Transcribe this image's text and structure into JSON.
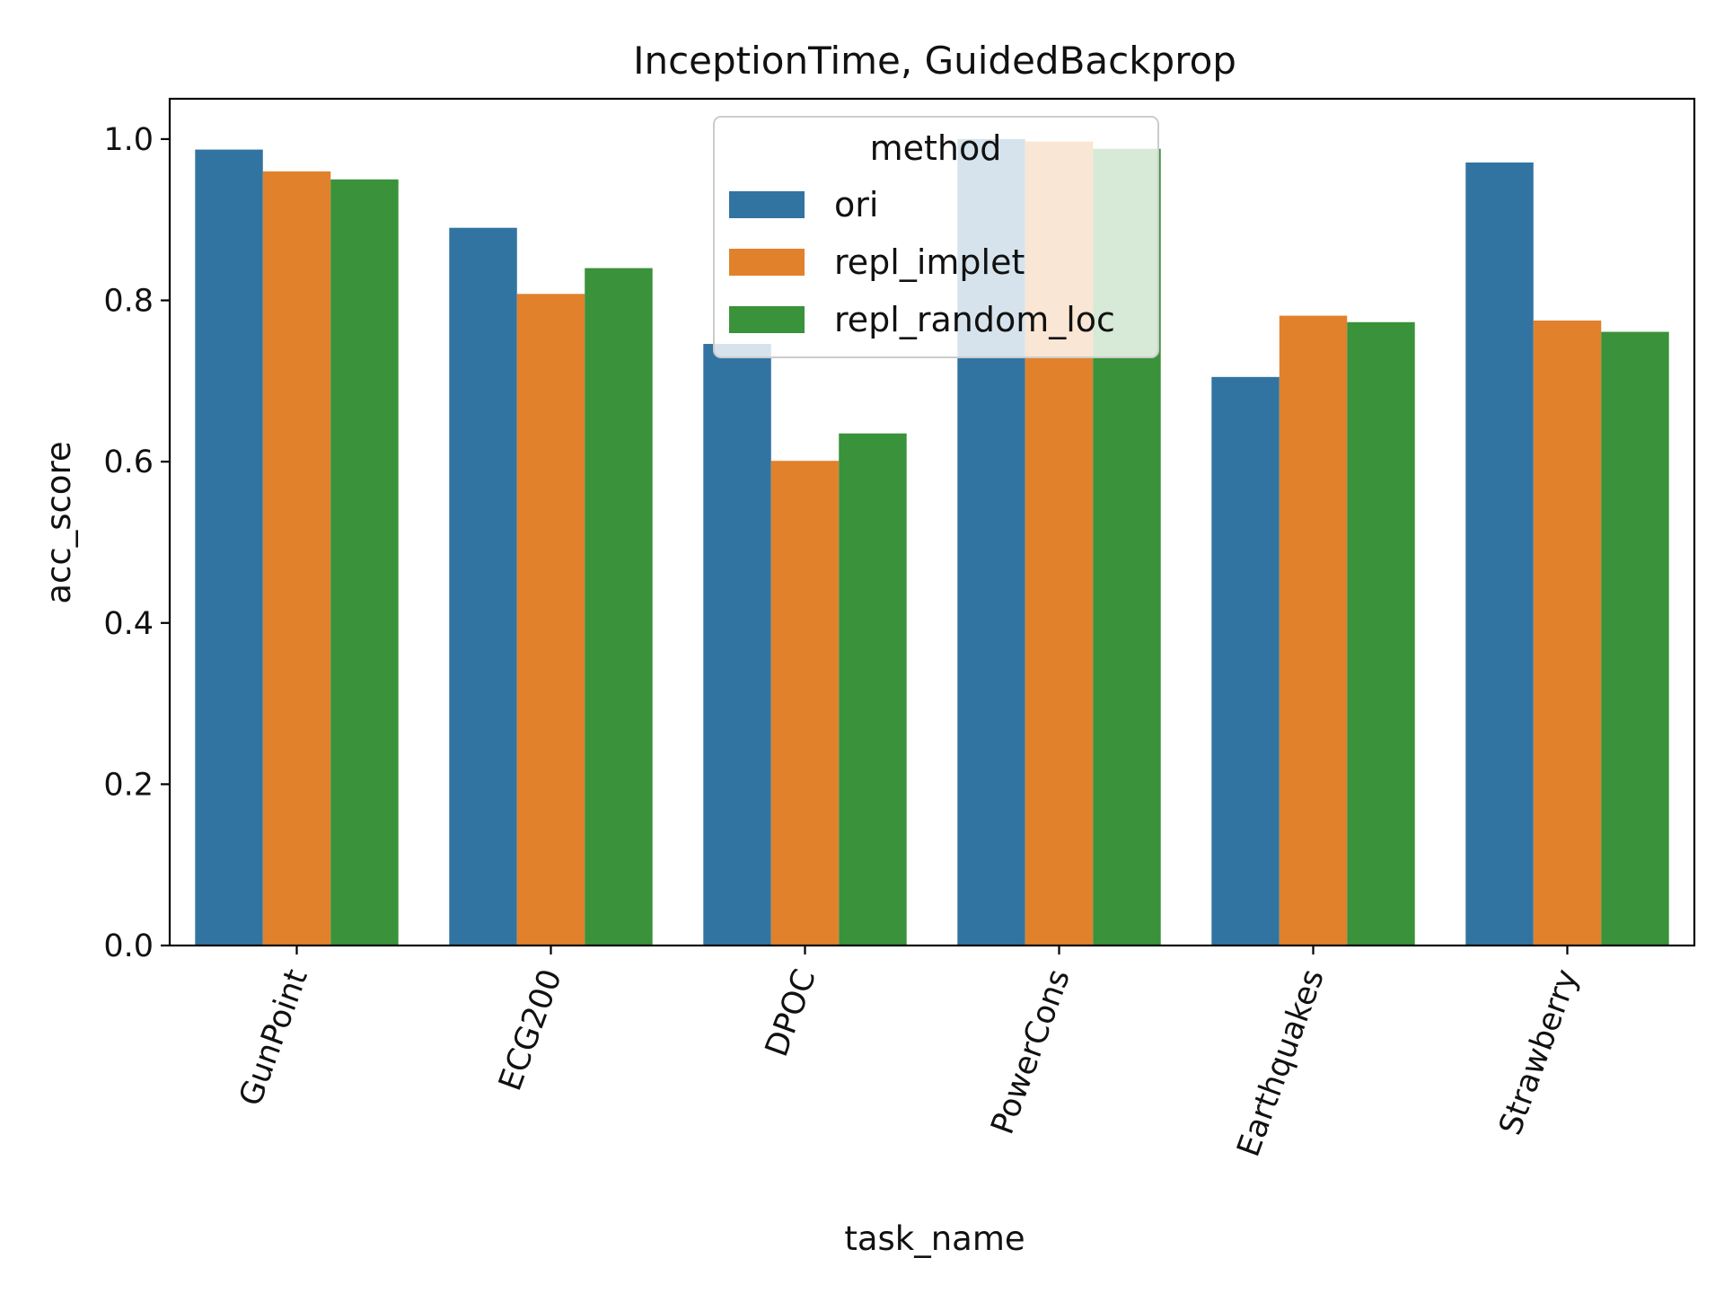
{
  "chart_data": {
    "type": "bar",
    "title": "InceptionTime, GuidedBackprop",
    "xlabel": "task_name",
    "ylabel": "acc_score",
    "ylim": [
      0,
      1.05
    ],
    "yticks": [
      "0.0",
      "0.2",
      "0.4",
      "0.6",
      "0.8",
      "1.0"
    ],
    "categories": [
      "GunPoint",
      "ECG200",
      "DPOC",
      "PowerCons",
      "Earthquakes",
      "Strawberry"
    ],
    "series": [
      {
        "name": "ori",
        "color": "#3274a1",
        "values": [
          0.987,
          0.89,
          0.746,
          1.0,
          0.705,
          0.971
        ]
      },
      {
        "name": "repl_implet",
        "color": "#e1812c",
        "values": [
          0.96,
          0.808,
          0.601,
          0.997,
          0.781,
          0.775
        ]
      },
      {
        "name": "repl_random_loc",
        "color": "#3a923a",
        "values": [
          0.95,
          0.84,
          0.635,
          0.988,
          0.773,
          0.761
        ]
      }
    ],
    "legend": {
      "title": "method",
      "position": "top-center"
    },
    "grid": false
  }
}
